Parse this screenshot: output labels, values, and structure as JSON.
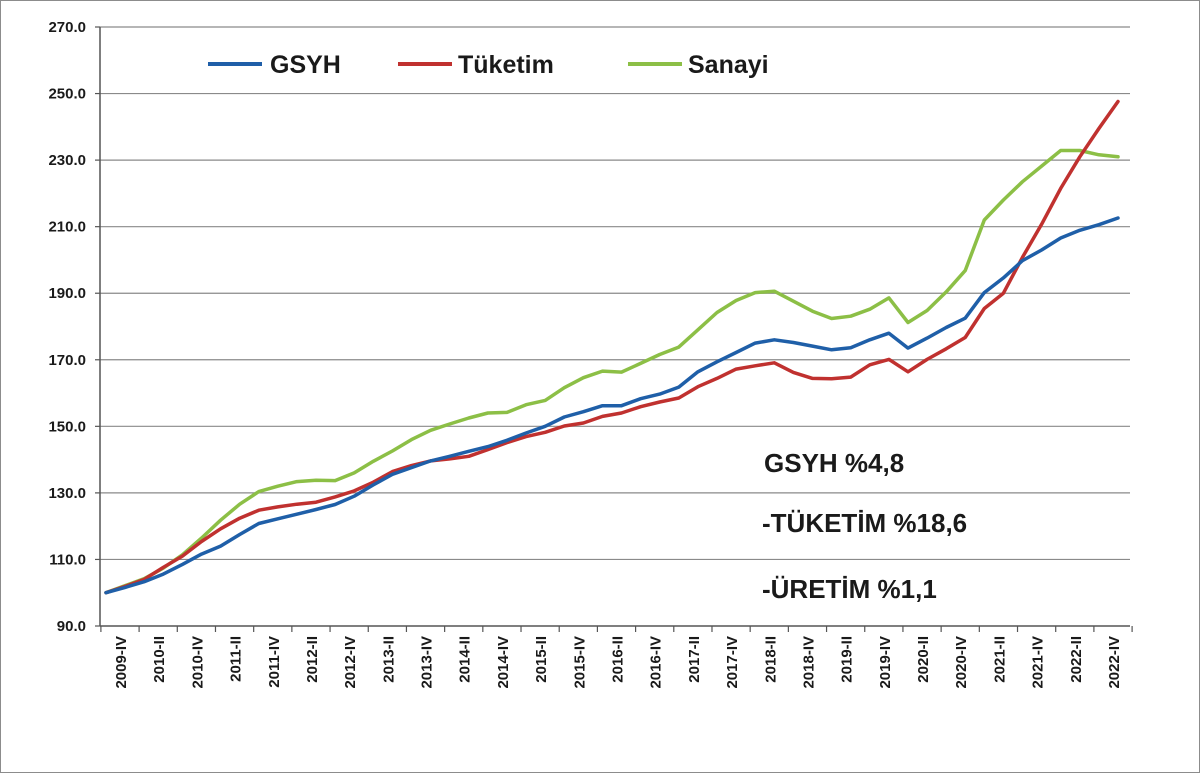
{
  "chart_data": {
    "type": "line",
    "title": "",
    "xlabel": "",
    "ylabel": "",
    "ylim": [
      90,
      270
    ],
    "yticks": [
      "90.0",
      "110.0",
      "130.0",
      "150.0",
      "170.0",
      "190.0",
      "210.0",
      "230.0",
      "250.0",
      "270.0"
    ],
    "grid": true,
    "legend_position": "top",
    "x_tick_labels": [
      "2009-IV",
      "2010-II",
      "2010-IV",
      "2011-II",
      "2011-IV",
      "2012-II",
      "2012-IV",
      "2013-II",
      "2013-IV",
      "2014-II",
      "2014-IV",
      "2015-II",
      "2015-IV",
      "2016-II",
      "2016-IV",
      "2017-II",
      "2017-IV",
      "2018-II",
      "2018-IV",
      "2019-II",
      "2019-IV",
      "2020-II",
      "2020-IV",
      "2021-II",
      "2021-IV",
      "2022-II",
      "2022-IV"
    ],
    "series": [
      {
        "name": "GSYH",
        "color": "#1f5fa8",
        "values": [
          100.0,
          101.6,
          103.3,
          105.6,
          108.5,
          111.6,
          114.0,
          117.5,
          120.8,
          122.2,
          123.6,
          125.0,
          126.5,
          129.0,
          132.4,
          135.6,
          137.6,
          139.6,
          141.0,
          142.5,
          143.9,
          145.8,
          148.0,
          150.0,
          152.8,
          154.4,
          156.2,
          156.2,
          158.3,
          159.7,
          161.8,
          166.4,
          169.4,
          172.2,
          175.0,
          176.0,
          175.2,
          174.1,
          173.0,
          173.6,
          176.0,
          178.0,
          173.5,
          176.5,
          179.7,
          182.5,
          190.2,
          194.6,
          199.8,
          203.0,
          206.6,
          208.9,
          210.6,
          212.6
        ]
      },
      {
        "name": "Tüketim",
        "color": "#c0312f",
        "values": [
          100.0,
          101.9,
          104.0,
          107.6,
          111.0,
          115.4,
          119.2,
          122.4,
          124.8,
          125.8,
          126.6,
          127.2,
          128.8,
          130.6,
          133.2,
          136.4,
          138.2,
          139.6,
          140.2,
          141.0,
          143.0,
          145.1,
          146.9,
          148.2,
          150.1,
          151.0,
          153.0,
          154.0,
          155.9,
          157.3,
          158.5,
          161.9,
          164.4,
          167.2,
          168.2,
          169.1,
          166.2,
          164.4,
          164.3,
          164.8,
          168.5,
          170.1,
          166.4,
          170.1,
          173.3,
          176.7,
          185.4,
          190.0,
          200.8,
          210.7,
          221.5,
          231.0,
          239.5,
          247.6
        ]
      },
      {
        "name": "Sanayi",
        "color": "#8cbf46",
        "values": [
          100.0,
          102.1,
          104.2,
          107.4,
          111.4,
          116.4,
          121.8,
          126.6,
          130.4,
          132.0,
          133.4,
          133.8,
          133.7,
          136.0,
          139.5,
          142.6,
          146.0,
          148.8,
          150.7,
          152.5,
          154.0,
          154.2,
          156.5,
          157.8,
          161.6,
          164.6,
          166.6,
          166.3,
          168.9,
          171.6,
          173.8,
          179.0,
          184.2,
          187.8,
          190.2,
          190.6,
          187.6,
          184.6,
          182.4,
          183.1,
          185.2,
          188.6,
          181.2,
          184.8,
          190.4,
          196.8,
          212.0,
          218.0,
          223.5,
          228.2,
          232.9,
          232.9,
          231.6,
          231.0
        ]
      }
    ],
    "annotations": [
      "GSYH %4,8",
      "-TÜKETİM %18,6",
      "-ÜRETİM %1,1"
    ]
  }
}
